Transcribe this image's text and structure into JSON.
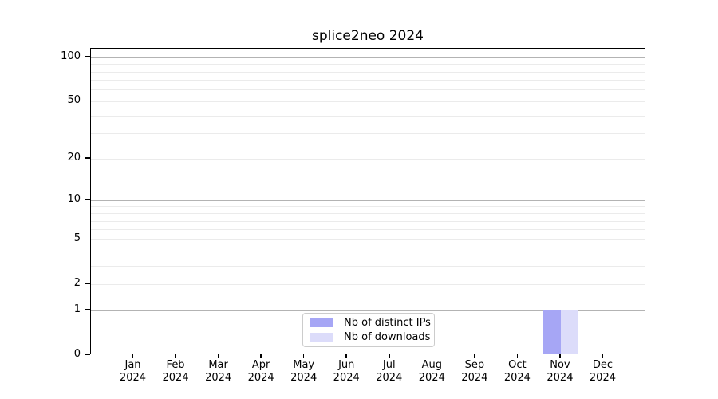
{
  "chart_data": {
    "type": "bar",
    "title": "splice2neo 2024",
    "categories": [
      "Jan",
      "Feb",
      "Mar",
      "Apr",
      "May",
      "Jun",
      "Jul",
      "Aug",
      "Sep",
      "Oct",
      "Nov",
      "Dec"
    ],
    "category_year": "2024",
    "series": [
      {
        "name": "Nb of distinct IPs",
        "color": "#a6a6f5",
        "values": [
          0,
          0,
          0,
          0,
          0,
          0,
          0,
          0,
          0,
          0,
          1,
          0
        ]
      },
      {
        "name": "Nb of downloads",
        "color": "#dcdcfa",
        "values": [
          0,
          0,
          0,
          0,
          0,
          0,
          0,
          0,
          0,
          0,
          1,
          0
        ]
      }
    ],
    "xlabel": "",
    "ylabel": "",
    "yscale": "log1p",
    "ylim": [
      0,
      115
    ],
    "yticks": [
      0,
      1,
      2,
      5,
      10,
      20,
      50,
      100
    ],
    "decade_gridlines": [
      1,
      10,
      100
    ],
    "minor_gridlines": [
      3,
      4,
      6,
      7,
      8,
      9,
      30,
      40,
      60,
      70,
      80,
      90
    ],
    "grid": "horizontal",
    "legend_position": "inside-bottom-center"
  },
  "colors": {
    "background": "#ffffff",
    "spine": "#000000",
    "grid_major": "#b3b3b3",
    "grid_minor": "#ebebeb",
    "text": "#000000",
    "legend_border": "#cccccc"
  }
}
